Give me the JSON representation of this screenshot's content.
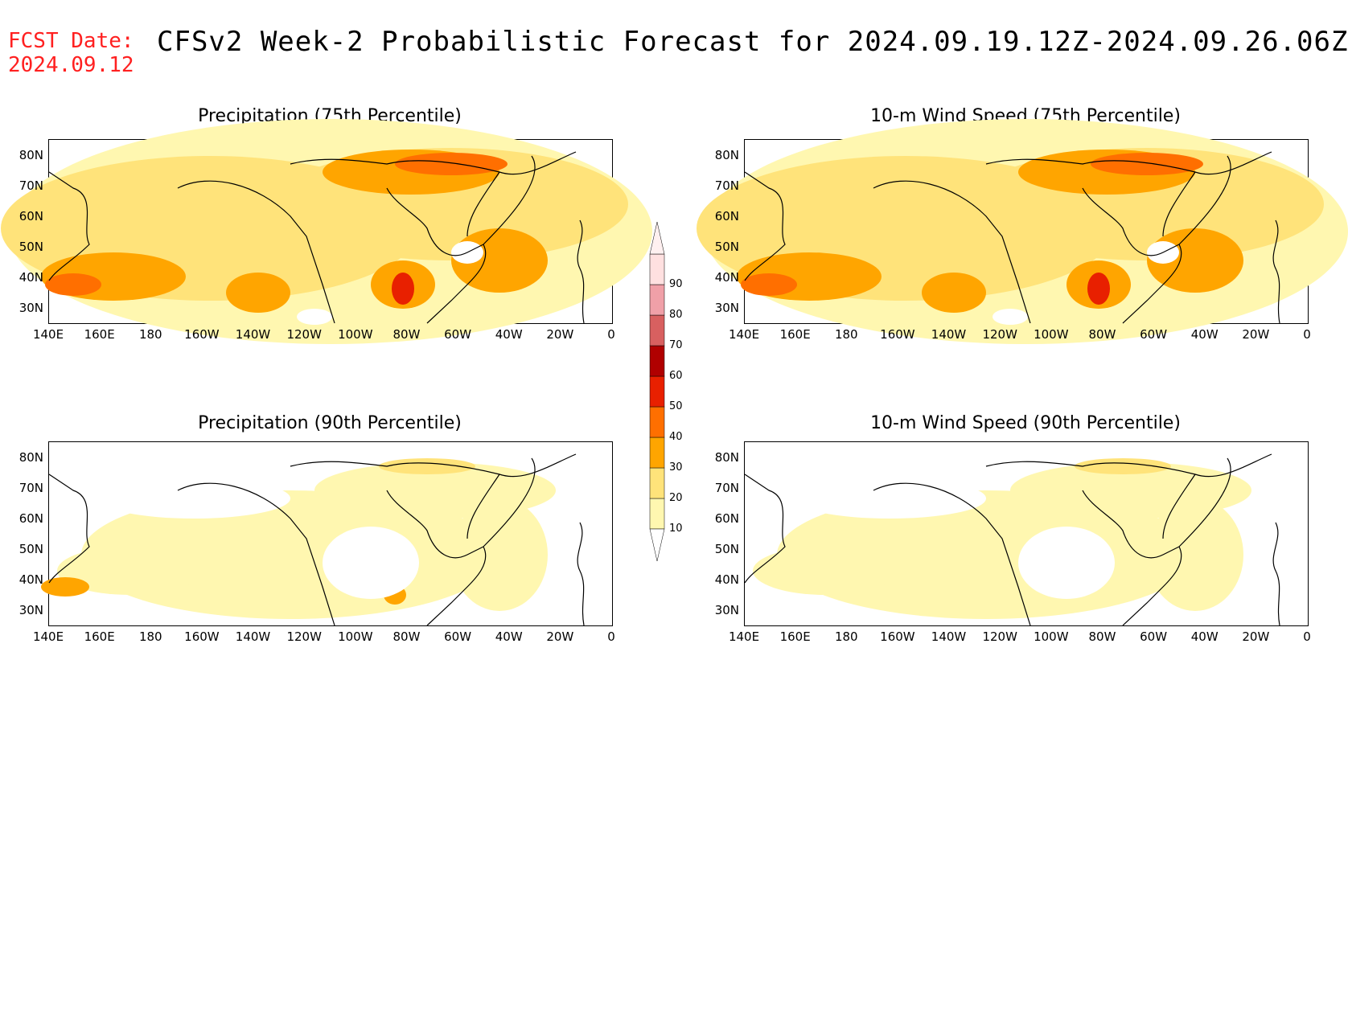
{
  "header": {
    "fcst_label": "FCST Date:",
    "fcst_date": "2024.09.12",
    "title": "CFSv2 Week-2 Probabilistic Forecast for 2024.09.19.12Z-2024.09.26.06Z"
  },
  "panels": [
    {
      "title": "Precipitation (75th Percentile)",
      "intensity": 0.75
    },
    {
      "title": "10-m Wind Speed (75th Percentile)",
      "intensity": 0.7
    },
    {
      "title": "Precipitation (90th Percentile)",
      "intensity": 0.25
    },
    {
      "title": "10-m Wind Speed (90th Percentile)",
      "intensity": 0.2
    }
  ],
  "axes": {
    "lat_labels": [
      "80N",
      "70N",
      "60N",
      "50N",
      "40N",
      "30N"
    ],
    "lon_labels": [
      "140E",
      "160E",
      "180",
      "160W",
      "140W",
      "120W",
      "100W",
      "80W",
      "60W",
      "40W",
      "20W",
      "0"
    ]
  },
  "colorbar": {
    "levels": [
      "10",
      "20",
      "30",
      "40",
      "50",
      "60",
      "70",
      "80",
      "90"
    ],
    "colors": [
      "#fff7b0",
      "#ffe37a",
      "#ffa500",
      "#ff6f00",
      "#e82000",
      "#b00000",
      "#d86060",
      "#f0a0a8",
      "#ffe0e0"
    ]
  }
}
